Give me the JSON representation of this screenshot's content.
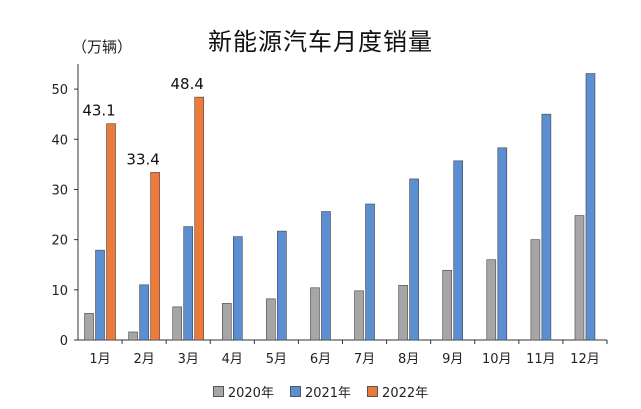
{
  "chart_data": {
    "type": "bar",
    "title": "新能源汽车月度销量",
    "unit_label": "（万辆）",
    "categories": [
      "1月",
      "2月",
      "3月",
      "4月",
      "5月",
      "6月",
      "7月",
      "8月",
      "9月",
      "10月",
      "11月",
      "12月"
    ],
    "series": [
      {
        "name": "2020年",
        "color": "#a6a6a6",
        "values": [
          5.3,
          1.6,
          6.6,
          7.3,
          8.2,
          10.4,
          9.8,
          10.9,
          13.9,
          16.0,
          20.0,
          24.8
        ]
      },
      {
        "name": "2021年",
        "color": "#5b8fd1",
        "values": [
          17.9,
          11.0,
          22.6,
          20.6,
          21.7,
          25.6,
          27.1,
          32.1,
          35.7,
          38.3,
          45.0,
          53.1
        ]
      },
      {
        "name": "2022年",
        "color": "#ec7a3b",
        "values": [
          43.1,
          33.4,
          48.4,
          null,
          null,
          null,
          null,
          null,
          null,
          null,
          null,
          null
        ],
        "labels": [
          "43.1",
          "33.4",
          "48.4"
        ]
      }
    ],
    "ylim": [
      0,
      55
    ],
    "yticks": [
      0,
      10,
      20,
      30,
      40,
      50
    ],
    "legend_position": "bottom",
    "grid": false
  }
}
